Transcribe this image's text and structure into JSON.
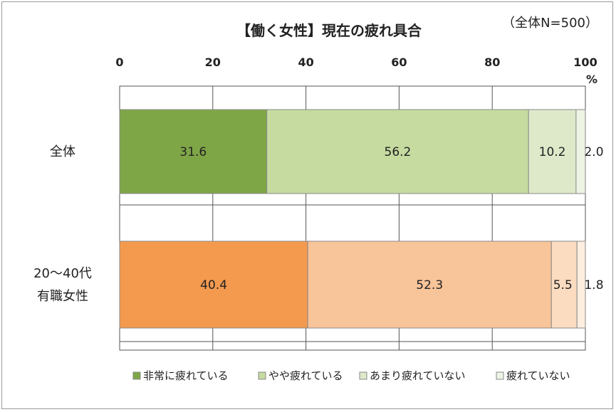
{
  "chart_data": {
    "type": "bar",
    "orientation": "horizontal",
    "stacked": true,
    "title": "【働く女性】現在の疲れ具合",
    "subtitle": "（全体N=500）",
    "xlim": [
      0,
      100
    ],
    "x_ticks": [
      "0",
      "20",
      "40",
      "60",
      "80",
      "100"
    ],
    "x_unit": "%",
    "grid": true,
    "legend_position": "bottom",
    "categories": [
      {
        "label_lines": [
          "全体"
        ]
      },
      {
        "label_lines": [
          "20～40代",
          "有職女性"
        ]
      }
    ],
    "series": [
      {
        "name": "非常に疲れている",
        "values": [
          31.6,
          40.4
        ],
        "labels": [
          "31.6",
          "40.4"
        ]
      },
      {
        "name": "やや疲れている",
        "values": [
          56.2,
          52.3
        ],
        "labels": [
          "56.2",
          "52.3"
        ]
      },
      {
        "name": "あまり疲れていない",
        "values": [
          10.2,
          5.5
        ],
        "labels": [
          "10.2",
          "5.5"
        ]
      },
      {
        "name": "疲れていない",
        "values": [
          2.0,
          1.8
        ],
        "labels": [
          "2.0",
          "1.8"
        ]
      }
    ],
    "colors": {
      "row_0": [
        "#7fa646",
        "#c6dba0",
        "#dde9c9",
        "#eef4e4"
      ],
      "row_1": [
        "#f39a4f",
        "#f8c499",
        "#fbdcc1",
        "#fdeee0"
      ],
      "legend": [
        "#7fa646",
        "#c6dba0",
        "#dde9c9",
        "#eef4e4"
      ]
    }
  }
}
